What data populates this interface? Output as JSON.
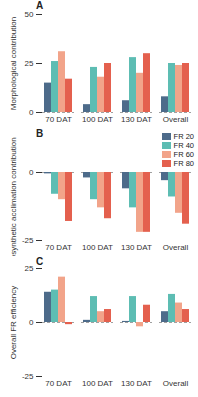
{
  "chart_data": [
    {
      "type": "bar",
      "panel": "A",
      "ylabel": "Morphological contribution",
      "categories": [
        "70 DAT",
        "100 DAT",
        "130 DAT",
        "Overall"
      ],
      "series": [
        {
          "name": "FR 20",
          "color": "#4d6b8a",
          "values": [
            15,
            4,
            6,
            8
          ]
        },
        {
          "name": "FR 40",
          "color": "#5dbdb3",
          "values": [
            26,
            23,
            28,
            25
          ]
        },
        {
          "name": "FR 60",
          "color": "#f2a48a",
          "values": [
            31,
            18,
            20,
            24
          ]
        },
        {
          "name": "FR 80",
          "color": "#e4604e",
          "values": [
            17,
            25,
            30,
            25
          ]
        }
      ],
      "ylim": [
        0,
        50
      ],
      "yticks": [
        0,
        25,
        50
      ],
      "baseline": 0
    },
    {
      "type": "bar",
      "panel": "B",
      "ylabel": "Photosynthetic acclimation contribution",
      "categories": [
        "70 DAT",
        "100 DAT",
        "130 DAT",
        "Overall"
      ],
      "series": [
        {
          "name": "FR 20",
          "color": "#4d6b8a",
          "values": [
            -0.5,
            -2,
            -6,
            -3
          ]
        },
        {
          "name": "FR 40",
          "color": "#5dbdb3",
          "values": [
            -8,
            -10,
            -13,
            -9
          ]
        },
        {
          "name": "FR 60",
          "color": "#f2a48a",
          "values": [
            -10,
            -13,
            -22,
            -15
          ]
        },
        {
          "name": "FR 80",
          "color": "#e4604e",
          "values": [
            -18,
            -17,
            -22,
            -19
          ]
        }
      ],
      "ylim": [
        -25,
        0
      ],
      "yticks": [
        -25,
        0
      ],
      "baseline": 0,
      "legend": "right"
    },
    {
      "type": "bar",
      "panel": "C",
      "ylabel": "Overall FR efficiency",
      "categories": [
        "70 DAT",
        "100 DAT",
        "130 DAT",
        "Overall"
      ],
      "series": [
        {
          "name": "FR 20",
          "color": "#4d6b8a",
          "values": [
            14,
            1,
            0.5,
            5
          ]
        },
        {
          "name": "FR 40",
          "color": "#5dbdb3",
          "values": [
            15,
            12,
            12,
            13
          ]
        },
        {
          "name": "FR 60",
          "color": "#f2a48a",
          "values": [
            21,
            5,
            -2,
            9
          ]
        },
        {
          "name": "FR 80",
          "color": "#e4604e",
          "values": [
            -1,
            6,
            8,
            6
          ]
        }
      ],
      "ylim": [
        -25,
        25
      ],
      "yticks": [
        -25,
        0,
        25
      ],
      "baseline": 0
    }
  ]
}
